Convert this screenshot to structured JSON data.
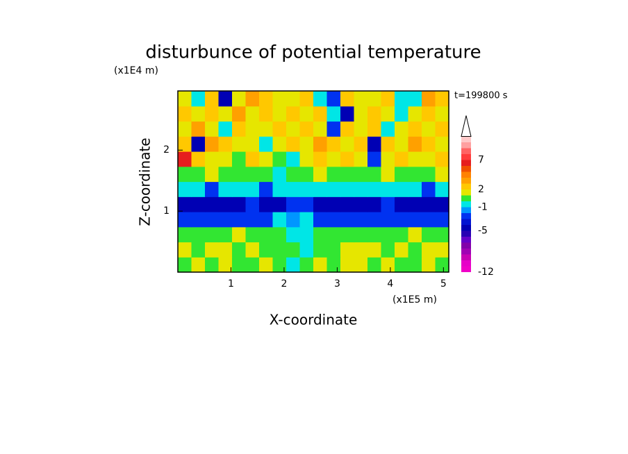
{
  "chart_data": {
    "type": "contour",
    "title": "disturbunce of potential temperature",
    "xlabel": "X-coordinate",
    "ylabel": "Z-coordinate",
    "xunit": "(x1E5 m)",
    "yunit": "(x1E4 m)",
    "annotation": "t=199800 s",
    "xlim": [
      0,
      5.1
    ],
    "ylim": [
      0,
      2.97
    ],
    "xticks": [
      1,
      2,
      3,
      4,
      5
    ],
    "yticks": [
      1,
      2
    ],
    "field": {
      "values": [
        [
          0.5,
          1.5,
          0.5,
          1.5,
          0.5,
          0.5,
          1.5,
          0.5,
          -0.5,
          0.5,
          1.5,
          0.5,
          1.5,
          1.5,
          0.5,
          1.5,
          0.5,
          0.5,
          1.5,
          0.5
        ],
        [
          1.5,
          0.5,
          1.5,
          1.5,
          0.5,
          1.5,
          0.5,
          0.5,
          0.5,
          -0.5,
          0.5,
          0.5,
          1.5,
          1.5,
          1.5,
          0.5,
          1.5,
          0.5,
          1.5,
          1.5
        ],
        [
          0.5,
          0.5,
          0.5,
          0.5,
          1.5,
          0.5,
          0.5,
          0.5,
          -0.5,
          -0.5,
          0.5,
          0.5,
          0.5,
          0.5,
          0.5,
          0.5,
          0.5,
          1.5,
          0.5,
          0.5
        ],
        [
          -2.5,
          -2.5,
          -2.5,
          -2.5,
          -2.5,
          -2.5,
          -2.5,
          -0.5,
          -1.5,
          -0.5,
          -2.5,
          -2.5,
          -2.5,
          -2.5,
          -2.5,
          -2.5,
          -2.5,
          -2.5,
          -2.5,
          -2.5
        ],
        [
          -4.5,
          -4.5,
          -4.5,
          -4.5,
          -4.5,
          -2.5,
          -4.5,
          -4.5,
          -2.5,
          -2.5,
          -4.5,
          -4.5,
          -4.5,
          -4.5,
          -4.5,
          -2.5,
          -4.5,
          -4.5,
          -4.5,
          -4.5
        ],
        [
          -0.5,
          -0.5,
          -2.5,
          -0.5,
          -0.5,
          -0.5,
          -2.5,
          -0.5,
          -0.5,
          -0.5,
          -0.5,
          -0.5,
          -0.5,
          -0.5,
          -0.5,
          -0.5,
          -0.5,
          -0.5,
          -2.5,
          -0.5
        ],
        [
          0.5,
          0.5,
          1.5,
          0.5,
          0.5,
          0.5,
          0.5,
          -0.5,
          0.5,
          0.5,
          1.5,
          0.5,
          0.5,
          0.5,
          0.5,
          1.5,
          0.5,
          0.5,
          0.5,
          1.5
        ],
        [
          6.5,
          2.5,
          1.5,
          1.5,
          0.5,
          2.5,
          1.5,
          0.5,
          -0.5,
          1.5,
          2.5,
          1.5,
          2.5,
          1.5,
          -2.5,
          1.5,
          2.5,
          1.5,
          1.5,
          2.5
        ],
        [
          2.5,
          -4.5,
          3.5,
          2.5,
          1.5,
          1.5,
          -0.5,
          1.5,
          2.5,
          1.5,
          3.5,
          2.5,
          1.5,
          2.5,
          -4.5,
          2.5,
          1.5,
          3.5,
          2.5,
          1.5
        ],
        [
          1.5,
          3.5,
          1.5,
          -0.5,
          2.5,
          1.5,
          1.5,
          2.5,
          1.5,
          2.5,
          1.5,
          -2.5,
          2.5,
          1.5,
          2.5,
          -0.5,
          1.5,
          2.5,
          1.5,
          2.5
        ],
        [
          2.5,
          1.5,
          2.5,
          1.5,
          3.5,
          1.5,
          2.5,
          1.5,
          2.5,
          1.5,
          2.5,
          -0.5,
          -4.5,
          1.5,
          2.5,
          1.5,
          -0.5,
          1.5,
          2.5,
          1.5
        ],
        [
          1.5,
          -0.5,
          2.5,
          -4.5,
          1.5,
          3.5,
          2.5,
          1.5,
          1.5,
          2.5,
          -0.5,
          -2.5,
          2.5,
          1.5,
          1.5,
          2.5,
          -0.5,
          -0.5,
          3.5,
          2.5
        ]
      ]
    },
    "colorbar": {
      "bounds": [
        -12,
        -11,
        -10,
        -9,
        -8,
        -7,
        -6,
        -5,
        -4,
        -3,
        -2,
        -1,
        0,
        1,
        2,
        3,
        4,
        5,
        6,
        7,
        8,
        9,
        10,
        11
      ],
      "colors": [
        "#f000c8",
        "#e600c8",
        "#c800b4",
        "#a000b4",
        "#8200aa",
        "#6400c8",
        "#2800b4",
        "#0000b4",
        "#0014d2",
        "#0032f0",
        "#0096ff",
        "#00e6e6",
        "#32e632",
        "#e6e600",
        "#ffc800",
        "#ffa000",
        "#ff8200",
        "#f05000",
        "#e61e1e",
        "#ff3c3c",
        "#ff6464",
        "#ffa0a0",
        "#ffc8c8"
      ],
      "over_color": "#ffffff",
      "ticks": [
        -12,
        -5,
        -1,
        2,
        7
      ]
    }
  }
}
